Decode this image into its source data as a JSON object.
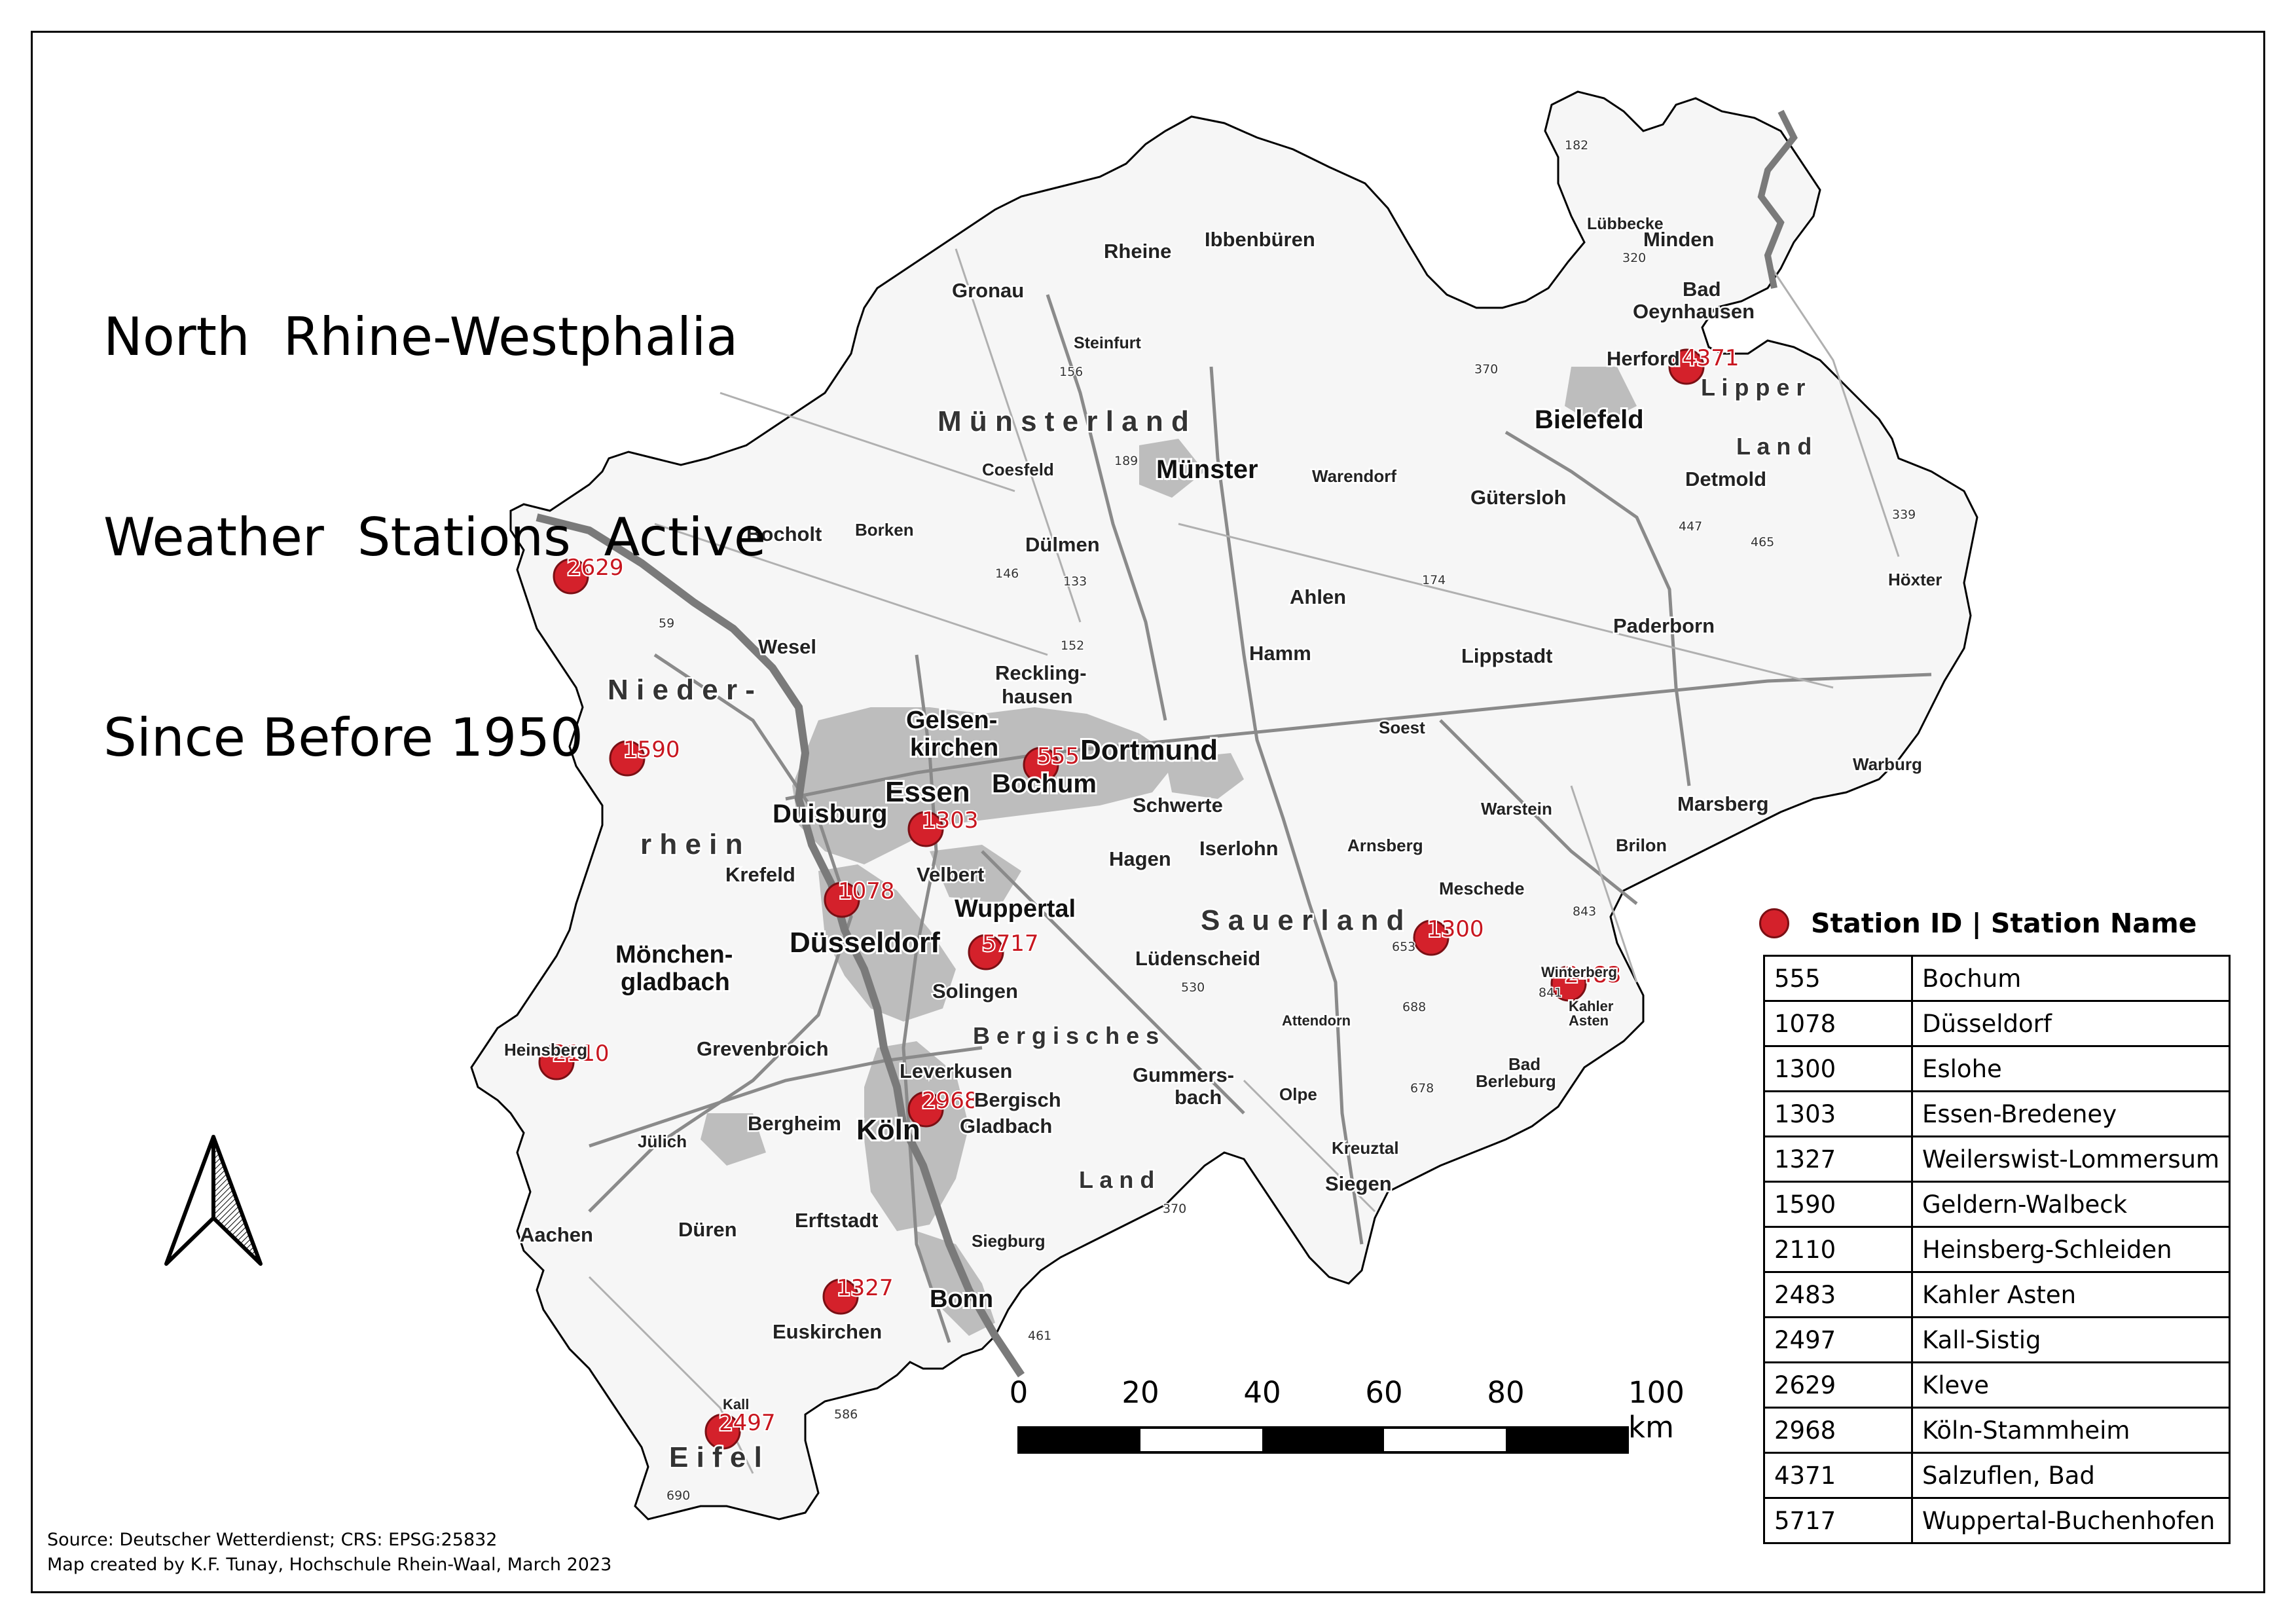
{
  "title": {
    "line1": "North  Rhine-Westphalia",
    "line2": "Weather  Stations  Active",
    "line3": "Since Before 1950"
  },
  "credits": {
    "line1": "Source: Deutscher Wetterdienst; CRS: EPSG:25832",
    "line2": "Map created by K.F. Tunay, Hochschule Rhein-Waal,  March 2023"
  },
  "legend": {
    "title": "Station ID | Station Name",
    "marker_color": "#d4212b",
    "rows": [
      {
        "id": "555",
        "name": "Bochum"
      },
      {
        "id": "1078",
        "name": "Düsseldorf"
      },
      {
        "id": "1300",
        "name": "Eslohe"
      },
      {
        "id": "1303",
        "name": "Essen-Bredeney"
      },
      {
        "id": "1327",
        "name": "Weilerswist-Lommersum"
      },
      {
        "id": "1590",
        "name": "Geldern-Walbeck"
      },
      {
        "id": "2110",
        "name": "Heinsberg-Schleiden"
      },
      {
        "id": "2483",
        "name": "Kahler Asten"
      },
      {
        "id": "2497",
        "name": "Kall-Sistig"
      },
      {
        "id": "2629",
        "name": "Kleve"
      },
      {
        "id": "2968",
        "name": "Köln-Stammheim"
      },
      {
        "id": "4371",
        "name": "Salzuflen, Bad"
      },
      {
        "id": "5717",
        "name": "Wuppertal-Buchenhofen"
      }
    ]
  },
  "scale_bar": {
    "labels": [
      "0",
      "20",
      "40",
      "60",
      "80",
      "100 km"
    ]
  },
  "north_arrow": {
    "icon": "north-arrow-icon"
  },
  "stations": [
    {
      "id": "2629"
    },
    {
      "id": "1590"
    },
    {
      "id": "555"
    },
    {
      "id": "1303"
    },
    {
      "id": "1078"
    },
    {
      "id": "5717"
    },
    {
      "id": "2110"
    },
    {
      "id": "2968"
    },
    {
      "id": "1327"
    },
    {
      "id": "2497"
    },
    {
      "id": "1300"
    },
    {
      "id": "2483"
    },
    {
      "id": "4371"
    }
  ],
  "regions": [
    "M ü n s t e r l a n d",
    "N i e d e r -",
    "r h e i n",
    "S a u e r l a n d",
    "B e r g i s c h e s",
    "L a n d",
    "E i f e l",
    "L i p p e r",
    "L a n d"
  ],
  "major_cities": [
    "Dortmund",
    "Essen",
    "Bochum",
    "Duisburg",
    "Düsseldorf",
    "Köln",
    "Wuppertal",
    "Münster",
    "Bielefeld",
    "Bonn",
    "Mönchen-",
    "gladbach",
    "Gelsen-",
    "kirchen"
  ],
  "cities": [
    "Gronau",
    "Rheine",
    "Ibbenbüren",
    "Minden",
    "Lübbecke",
    "Bad",
    "Oeynhausen",
    "Herford",
    "Steinfurt",
    "Coesfeld",
    "Warendorf",
    "Gütersloh",
    "Detmold",
    "Bocholt",
    "Borken",
    "Dülmen",
    "Ahlen",
    "Höxter",
    "Wesel",
    "Reckling-",
    "hausen",
    "Hamm",
    "Lippstadt",
    "Paderborn",
    "Soest",
    "Warburg",
    "Schwerte",
    "Hagen",
    "Iserlohn",
    "Warstein",
    "Marsberg",
    "Krefeld",
    "Velbert",
    "Arnsberg",
    "Brilon",
    "Meschede",
    "Lüdenscheid",
    "Solingen",
    "Winterberg",
    "Kahler",
    "Asten",
    "Heinsberg",
    "Grevenbroich",
    "Attendorn",
    "Leverkusen",
    "Bergisch",
    "Gladbach",
    "Gummers-",
    "bach",
    "Bad",
    "Berleburg",
    "Olpe",
    "Bergheim",
    "Jülich",
    "Kreuztal",
    "Siegen",
    "Aachen",
    "Düren",
    "Erftstadt",
    "Siegburg",
    "Euskirchen",
    "Kall"
  ],
  "road_numbers": [
    "182",
    "320",
    "370",
    "156",
    "189",
    "146",
    "133",
    "152",
    "174",
    "447",
    "465",
    "339",
    "59",
    "530",
    "688",
    "678",
    "370",
    "461",
    "586",
    "690",
    "843",
    "841",
    "653"
  ]
}
